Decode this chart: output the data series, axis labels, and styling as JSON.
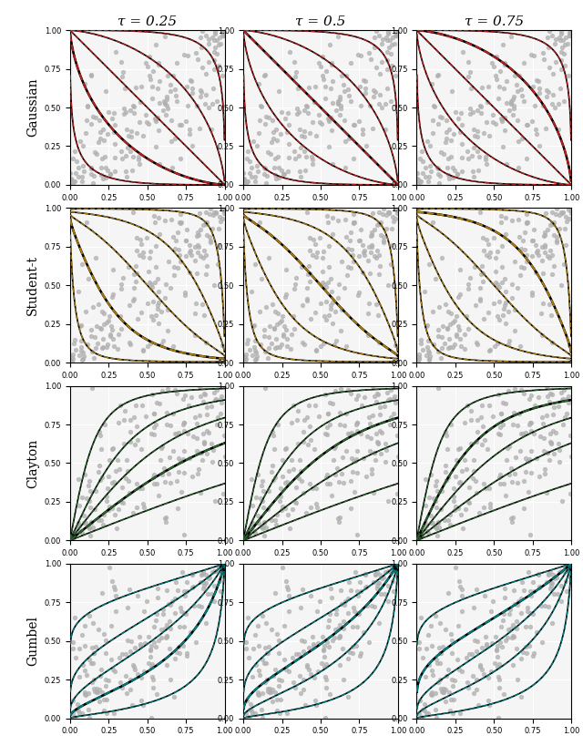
{
  "col_titles": [
    "τ = 0.25",
    "τ = 0.5",
    "τ = 0.75"
  ],
  "row_labels": [
    "Gaussian",
    "Student-t",
    "Clayton",
    "Gumbel"
  ],
  "row_colors": [
    "#cc2222",
    "#b8860b",
    "#2d6a2d",
    "#008b8b"
  ],
  "tau_values": [
    0.25,
    0.5,
    0.75
  ],
  "n_curves": 5,
  "background": "#f5f5f5",
  "scatter_color": "#b0b0b0",
  "scatter_alpha": 0.7,
  "scatter_size": 8,
  "n_points": 200
}
